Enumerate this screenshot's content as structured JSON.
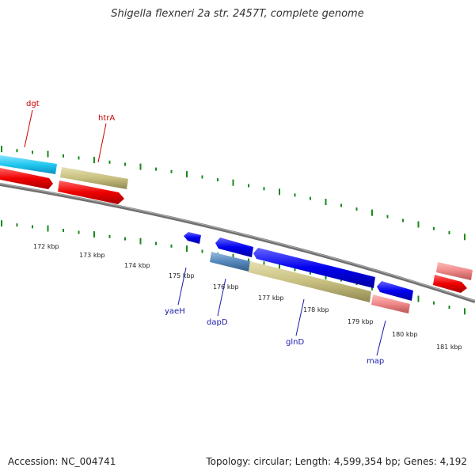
{
  "title": "Shigella flexneri 2a str. 2457T, complete genome",
  "footer": {
    "accession": "Accession: NC_004741",
    "topology": "Topology: circular; Length: 4,599,354 bp; Genes: 4,192"
  },
  "ruler_labels": [
    "172 kbp",
    "173 kbp",
    "174 kbp",
    "175 kbp",
    "176 kbp",
    "177 kbp",
    "178 kbp",
    "179 kbp",
    "180 kbp",
    "181 kbp"
  ],
  "gene_labels": {
    "dgt": "dgt",
    "htrA": "htrA",
    "yaeH": "yaeH",
    "dapD": "dapD",
    "glnD": "glnD",
    "map": "map"
  },
  "colors": {
    "backbone": "#777777",
    "tick": "#1a8a1a",
    "red_label": "#cc0000",
    "blue_label": "#1a1aaa",
    "cyan": "#33ccee",
    "red": "#ee0000",
    "olive": "#c8c080",
    "blue": "#0000ee",
    "steel": "#5588bb",
    "pink": "#ee8888"
  }
}
